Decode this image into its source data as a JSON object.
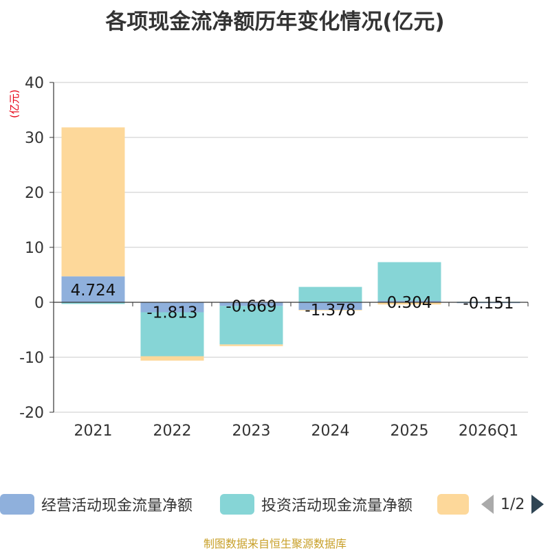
{
  "chart_data": {
    "type": "bar",
    "stacked": true,
    "title": "各项现金流净额历年变化情况(亿元)",
    "ylabel": "(亿元)",
    "xlabel": "",
    "ylim": [
      -20,
      40
    ],
    "yticks": [
      40,
      30,
      20,
      10,
      0,
      -10,
      -20
    ],
    "categories": [
      "2021",
      "2022",
      "2023",
      "2024",
      "2025",
      "2026Q1"
    ],
    "series": [
      {
        "name": "经营活动现金流量净额",
        "color": "#8fb0dc",
        "values": [
          4.724,
          -1.813,
          -0.669,
          -1.378,
          0.304,
          -0.151
        ]
      },
      {
        "name": "投资活动现金流量净额",
        "color": "#86d5d6",
        "values": [
          -0.3,
          -8.0,
          -7.0,
          2.8,
          7.0,
          0.1
        ]
      },
      {
        "name": "",
        "color": "#fdd89a",
        "values": [
          27.1,
          -0.8,
          -0.3,
          -0.1,
          -0.4,
          0.0
        ]
      }
    ],
    "data_labels": [
      "4.724",
      "-1.813",
      "-0.669",
      "-1.378",
      "0.304",
      "-0.151"
    ],
    "legend_position": "bottom"
  },
  "legend": {
    "items": [
      {
        "label": "经营活动现金流量净额",
        "color": "#8fb0dc"
      },
      {
        "label": "投资活动现金流量净额",
        "color": "#86d5d6"
      },
      {
        "label": "",
        "color": "#fdd89a"
      }
    ],
    "page": "1/2"
  },
  "source": "制图数据来自恒生聚源数据库"
}
